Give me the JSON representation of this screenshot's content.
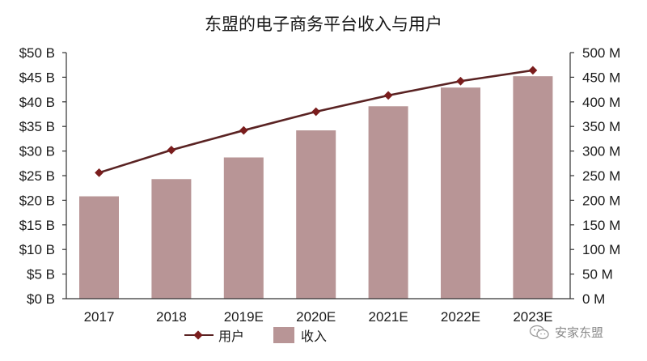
{
  "chart_data": {
    "type": "bar",
    "title": "东盟的电子商务平台收入与用户",
    "categories": [
      "2017",
      "2018",
      "2019E",
      "2020E",
      "2021E",
      "2022E",
      "2023E"
    ],
    "series": [
      {
        "name": "收入",
        "type": "bar",
        "axis": "left",
        "unit": "$B",
        "color": "#b89596",
        "values": [
          20.8,
          24.3,
          28.7,
          34.2,
          39.1,
          42.9,
          45.2
        ]
      },
      {
        "name": "用户",
        "type": "line",
        "axis": "right",
        "unit": "M",
        "color": "#5a2323",
        "marker_color": "#7a1d1d",
        "values": [
          256,
          302,
          342,
          380,
          413,
          442,
          464
        ]
      }
    ],
    "y_left": {
      "label": "",
      "ylim": [
        0,
        50
      ],
      "ticks": [
        "$0 B",
        "$5 B",
        "$10 B",
        "$15 B",
        "$20 B",
        "$25 B",
        "$30 B",
        "$35 B",
        "$40 B",
        "$45 B",
        "$50 B"
      ]
    },
    "y_right": {
      "label": "",
      "ylim": [
        0,
        500
      ],
      "ticks": [
        "0 M",
        "50 M",
        "100 M",
        "150 M",
        "200 M",
        "250 M",
        "300 M",
        "350 M",
        "400 M",
        "450 M",
        "500 M"
      ]
    },
    "xlabel": "",
    "grid": false,
    "legend": {
      "position": "bottom",
      "entries": [
        "用户",
        "收入"
      ]
    }
  },
  "legend": {
    "line_label": "用户",
    "bar_label": "收入"
  },
  "watermark": {
    "icon": "wechat-icon",
    "text": "安家东盟"
  }
}
